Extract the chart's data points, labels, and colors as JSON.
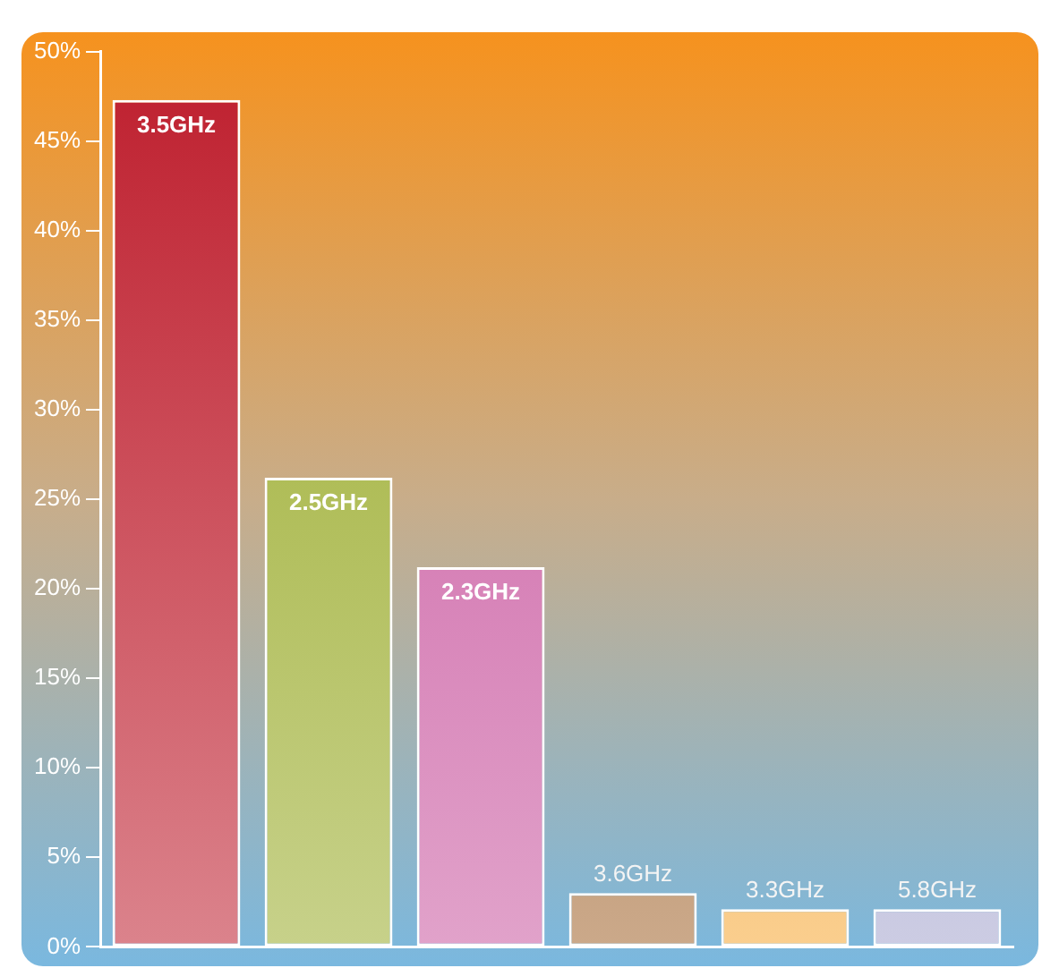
{
  "chart_data": {
    "type": "bar",
    "categories": [
      "3.5GHz",
      "2.5GHz",
      "2.3GHz",
      "3.6GHz",
      "3.3GHz",
      "5.8GHz"
    ],
    "values": [
      47.3,
      26.2,
      21.2,
      3.0,
      2.1,
      2.1
    ],
    "colors": [
      "#be1e2d",
      "#9aab2a",
      "#c9569e",
      "#a0622a",
      "#f6a531",
      "#a3a3cc"
    ],
    "ylim": [
      0,
      50
    ],
    "yticks": [
      {
        "value": 0,
        "label": "0%"
      },
      {
        "value": 5,
        "label": "5%"
      },
      {
        "value": 10,
        "label": "10%"
      },
      {
        "value": 15,
        "label": "15%"
      },
      {
        "value": 20,
        "label": "20%"
      },
      {
        "value": 25,
        "label": "25%"
      },
      {
        "value": 30,
        "label": "30%"
      },
      {
        "value": 35,
        "label": "35%"
      },
      {
        "value": 40,
        "label": "40%"
      },
      {
        "value": 45,
        "label": "45%"
      },
      {
        "value": 50,
        "label": "50%"
      }
    ],
    "tick_labels": "y",
    "grid": false,
    "legend": false
  }
}
